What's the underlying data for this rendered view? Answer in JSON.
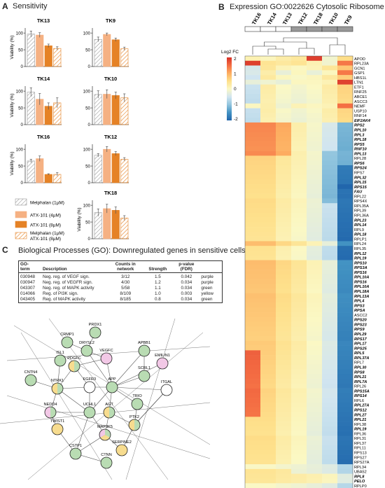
{
  "panels": {
    "a": {
      "letter": "A",
      "title": "Sensitivity"
    },
    "b": {
      "letter": "B",
      "title": "Expression GO:0022626 Cytosolic Ribosome"
    },
    "c": {
      "letter": "C",
      "title": "Biological Processes (GO): Downregulated genes in sensitive cells"
    }
  },
  "bar_charts": {
    "y_label": "Viability (%)",
    "y_ticks": [
      "0",
      "50",
      "100"
    ],
    "ylim": [
      0,
      115
    ],
    "series_colors": [
      "#ffffff",
      "#f5b183",
      "#e58226",
      "#ffffff"
    ],
    "charts": [
      {
        "title": "TK13",
        "values": [
          97,
          94,
          62,
          54
        ],
        "errors": [
          9,
          7,
          5,
          5
        ]
      },
      {
        "title": "TK9",
        "values": [
          81,
          96,
          80,
          53
        ],
        "errors": [
          7,
          4,
          5,
          5
        ]
      },
      {
        "title": "TK14",
        "values": [
          97,
          76,
          55,
          65
        ],
        "errors": [
          13,
          17,
          10,
          15
        ]
      },
      {
        "title": "TK10",
        "values": [
          90,
          91,
          87,
          80
        ],
        "errors": [
          11,
          13,
          10,
          12
        ]
      },
      {
        "title": "TK16",
        "values": [
          65,
          72,
          25,
          25
        ],
        "errors": [
          5,
          8,
          2,
          5
        ]
      },
      {
        "title": "TK12",
        "values": [
          82,
          100,
          87,
          70
        ],
        "errors": [
          5,
          8,
          6,
          5
        ]
      },
      {
        "title": "TK18",
        "values": [
          78,
          90,
          85,
          62
        ],
        "errors": [
          11,
          13,
          10,
          7
        ]
      }
    ],
    "legend": [
      {
        "label": "Melphalan (1µM)"
      },
      {
        "label": "ATX-101 (4µM)"
      },
      {
        "label": "ATX-101 (8µM)"
      },
      {
        "label": "Melphalan (1µM) ATX-101 (8µM)"
      }
    ]
  },
  "heatmap": {
    "columns": [
      "TK16",
      "TK14",
      "TK13",
      "TK12",
      "TK18",
      "TK10",
      "TK9"
    ],
    "sensitive_color": "#ffffff",
    "resistant_color": "#999999",
    "legend_title": "Log2 FC",
    "legend_ticks": [
      "2",
      "1",
      "0",
      "-1",
      "-2"
    ],
    "colors": [
      "#2166ac",
      "#4393c3",
      "#92c5de",
      "#d1e5f0",
      "#fbf8c4",
      "#fee08b",
      "#fdae61",
      "#f46d43",
      "#d73027"
    ],
    "genes": [
      "APOD",
      "RPL23A",
      "GCN1",
      "GSP1",
      "HBS1L",
      "LTN1",
      "ETF1",
      "RNF25",
      "ABCE1",
      "ASCC3",
      "NEMF",
      "USP10",
      "RNF14",
      "EIF2AK4",
      "RPS2",
      "RPL10",
      "RPL3",
      "RPL18",
      "RPS5",
      "RNF10",
      "RPL13",
      "RPL28",
      "RPS6",
      "RPS24",
      "RPS7",
      "RPL32",
      "RPL15",
      "RPS15",
      "FAU",
      "RPL22",
      "RPS4X",
      "RPL35A",
      "RPL39",
      "RPL36A",
      "RPL23",
      "RPL14",
      "RPL9",
      "RPL18",
      "RPLP1",
      "RPL24",
      "RPL35",
      "RPL12",
      "RPL19",
      "RPS10",
      "RPS3A",
      "RPS16",
      "RPL10A",
      "RPS16",
      "RPL10A",
      "RPL18A",
      "RPL13A",
      "RPL4",
      "RPS3",
      "RPSA",
      "ASCC2",
      "RPS20",
      "RPS23",
      "RPS9",
      "RPL29",
      "RPS17",
      "RPL17",
      "RPS25",
      "RPL5",
      "RPL37A",
      "RPL7",
      "RPL30",
      "RPS8",
      "RPL21",
      "RPL7A",
      "RPL26",
      "RPS15A",
      "RPS14",
      "RPL6",
      "RPL27A",
      "RPS12",
      "RPL27",
      "RPL21",
      "RPL38",
      "RPL19",
      "RPL36",
      "RPL31",
      "RPL37",
      "RPL11",
      "RPS13",
      "RPS27",
      "RPS27A",
      "RPL34",
      "UBA52",
      "RPL8",
      "PELO",
      "RPLP0",
      "EEF1A1"
    ],
    "bold_genes": [
      "EIF2AK4",
      "RPS2",
      "RPL10",
      "RPL3",
      "RPL18",
      "RPS5",
      "RNF10",
      "RPL13",
      "RPS6",
      "RPS24",
      "RPL32",
      "RPL15",
      "RPS15",
      "FAU",
      "RPL23",
      "RPL14",
      "RPL12",
      "RPL19",
      "RPS10",
      "RPS3A",
      "RPS16",
      "RPL10A",
      "RPL18A",
      "RPL13A",
      "RPL4",
      "RPS3",
      "RPSA",
      "RPS20",
      "RPS23",
      "RPS9",
      "RPL29",
      "RPS17",
      "RPL17",
      "RPS25",
      "RPL5",
      "RPL37A",
      "RPL30",
      "RPS8",
      "RPL21",
      "RPL7A",
      "RPS15A",
      "RPS14",
      "RPL27A",
      "RPS12",
      "RPL27",
      "RPL8",
      "PELO",
      "EEF1A1"
    ]
  },
  "go_table": {
    "headers": {
      "term": "GO-\nterm",
      "desc": "Description",
      "counts": "Counts in\nnetwork",
      "strength": "Strength",
      "pval": "p-value\n(FDR)"
    },
    "rows": [
      {
        "term": "030948",
        "desc": "Neg. reg. of VEGF sign.",
        "counts": "3/12",
        "strength": "1.5",
        "pval": "0.042",
        "color": "purple"
      },
      {
        "term": "030947",
        "desc": "Neg. reg. of VEGFR sign.",
        "counts": "4/30",
        "strength": "1.2",
        "pval": "0.034",
        "color": "purple"
      },
      {
        "term": "043307",
        "desc": "Neg. reg. of MAPK activity",
        "counts": "5/58",
        "strength": "1.1",
        "pval": "0.034",
        "color": "green"
      },
      {
        "term": "014066",
        "desc": "Reg. of PI3K sign.",
        "counts": "8/109",
        "strength": "1.0",
        "pval": "0.003",
        "color": "yellow"
      },
      {
        "term": "043405",
        "desc": "Reg. of MAPK activity",
        "counts": "8/185",
        "strength": "0.8",
        "pval": "0.034",
        "color": "green"
      }
    ]
  },
  "network": {
    "palette": {
      "green": "#b9dcb3",
      "yellow": "#f7dc8f",
      "pink": "#f2c8e6",
      "white": "#ffffff"
    },
    "nodes": [
      {
        "id": "PRDX1",
        "fill": [
          "green"
        ]
      },
      {
        "id": "CRMP1",
        "fill": [
          "green"
        ]
      },
      {
        "id": "DRYSL2",
        "fill": [
          "green"
        ]
      },
      {
        "id": "VEGFC",
        "fill": [
          "pink"
        ]
      },
      {
        "id": "APBB1",
        "fill": [
          "green"
        ]
      },
      {
        "id": "EMILIN1",
        "fill": [
          "pink"
        ]
      },
      {
        "id": "ISL1",
        "fill": [
          "green"
        ]
      },
      {
        "id": "PDGFC",
        "fill": [
          "green",
          "yellow"
        ]
      },
      {
        "id": "SCRL1",
        "fill": [
          "green"
        ]
      },
      {
        "id": "CNTN4",
        "fill": [
          "green"
        ]
      },
      {
        "id": "NTRK1",
        "fill": [
          "green",
          "yellow"
        ]
      },
      {
        "id": "FGFR3",
        "fill": [
          "white"
        ]
      },
      {
        "id": "APP",
        "fill": [
          "green"
        ]
      },
      {
        "id": "ITGAL",
        "fill": [
          "white"
        ]
      },
      {
        "id": "TRIO",
        "fill": [
          "green"
        ]
      },
      {
        "id": "NEDD4",
        "fill": [
          "green",
          "pink"
        ]
      },
      {
        "id": "UCHL1",
        "fill": [
          "green"
        ]
      },
      {
        "id": "AGT",
        "fill": [
          "green",
          "yellow"
        ]
      },
      {
        "id": "PTK2",
        "fill": [
          "green",
          "yellow"
        ]
      },
      {
        "id": "TWIST1",
        "fill": [
          "yellow"
        ]
      },
      {
        "id": "MAP3K5",
        "fill": [
          "green",
          "yellow",
          "pink"
        ]
      },
      {
        "id": "SERPINE2",
        "fill": [
          "yellow"
        ]
      },
      {
        "id": "CSTP1",
        "fill": [
          "green"
        ]
      },
      {
        "id": "CTNN",
        "fill": [
          "green"
        ]
      }
    ]
  }
}
